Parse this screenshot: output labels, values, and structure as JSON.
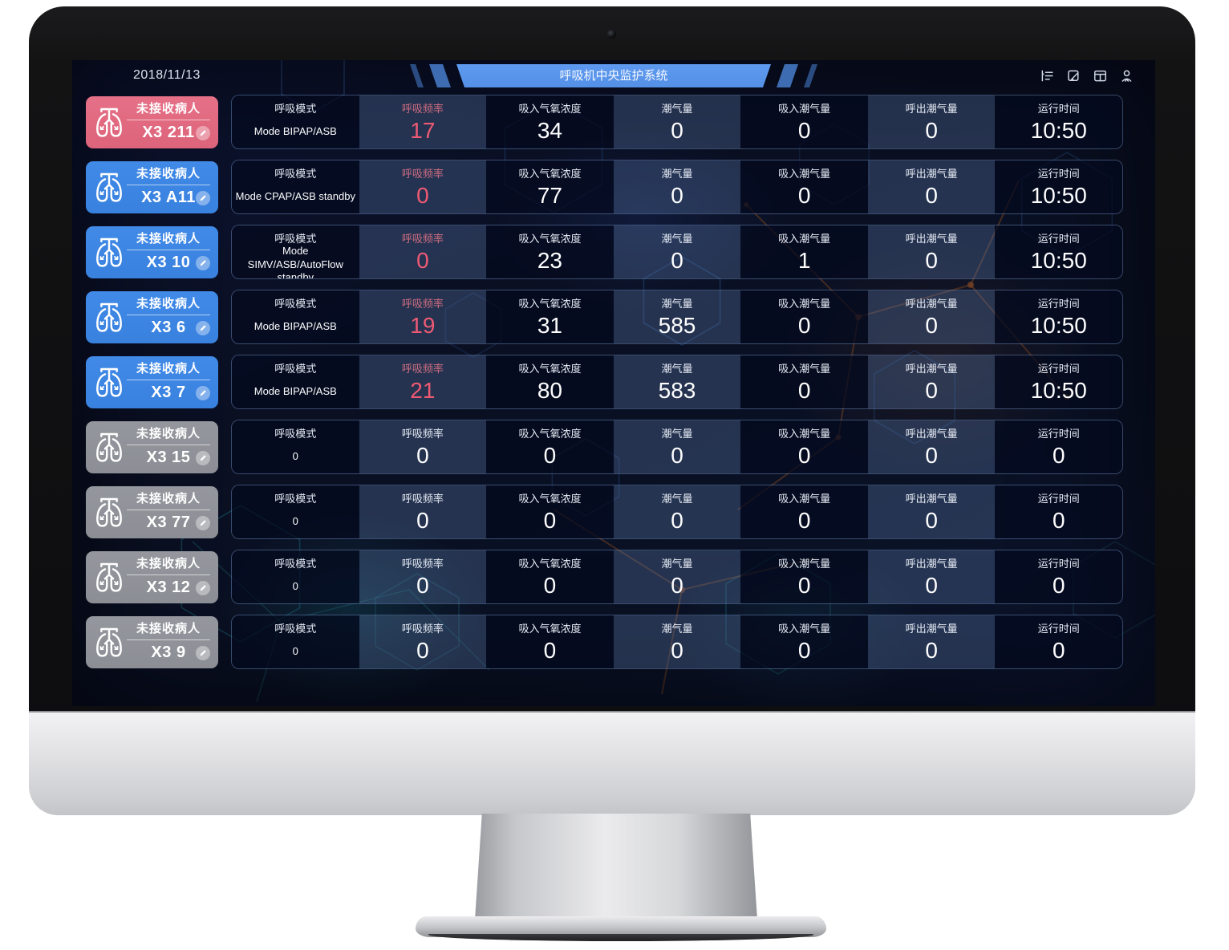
{
  "frame": {
    "date": "2018/11/13",
    "title": "呼吸机中央监护系统"
  },
  "toolbar": {
    "icons": [
      "collapse-menu-icon",
      "edit-note-icon",
      "layout-icon",
      "user-icon"
    ]
  },
  "columns": [
    {
      "key": "mode",
      "label": "呼吸模式"
    },
    {
      "key": "rate",
      "label": "呼吸频率"
    },
    {
      "key": "fio2",
      "label": "吸入气氧浓度"
    },
    {
      "key": "tidal",
      "label": "潮气量"
    },
    {
      "key": "insp_tidal",
      "label": "吸入潮气量"
    },
    {
      "key": "exp_tidal",
      "label": "呼出潮气量"
    },
    {
      "key": "runtime",
      "label": "运行时间"
    }
  ],
  "rows": [
    {
      "id": "X3 211",
      "status": "未接收病人",
      "state": "alarm",
      "values": {
        "mode": "Mode BIPAP/ASB",
        "rate": "17",
        "fio2": "34",
        "tidal": "0",
        "insp_tidal": "0",
        "exp_tidal": "0",
        "runtime": "10:50"
      }
    },
    {
      "id": "X3 A11",
      "status": "未接收病人",
      "state": "online",
      "values": {
        "mode": "Mode CPAP/ASB standby",
        "rate": "0",
        "fio2": "77",
        "tidal": "0",
        "insp_tidal": "0",
        "exp_tidal": "0",
        "runtime": "10:50"
      }
    },
    {
      "id": "X3 10",
      "status": "未接收病人",
      "state": "online",
      "values": {
        "mode": "Mode SIMV/ASB/AutoFlow standby",
        "rate": "0",
        "fio2": "23",
        "tidal": "0",
        "insp_tidal": "1",
        "exp_tidal": "0",
        "runtime": "10:50"
      }
    },
    {
      "id": "X3 6",
      "status": "未接收病人",
      "state": "online",
      "values": {
        "mode": "Mode BIPAP/ASB",
        "rate": "19",
        "fio2": "31",
        "tidal": "585",
        "insp_tidal": "0",
        "exp_tidal": "0",
        "runtime": "10:50"
      }
    },
    {
      "id": "X3 7",
      "status": "未接收病人",
      "state": "online",
      "values": {
        "mode": "Mode BIPAP/ASB",
        "rate": "21",
        "fio2": "80",
        "tidal": "583",
        "insp_tidal": "0",
        "exp_tidal": "0",
        "runtime": "10:50"
      }
    },
    {
      "id": "X3 15",
      "status": "未接收病人",
      "state": "offline",
      "values": {
        "mode": "0",
        "rate": "0",
        "fio2": "0",
        "tidal": "0",
        "insp_tidal": "0",
        "exp_tidal": "0",
        "runtime": "0"
      }
    },
    {
      "id": "X3 77",
      "status": "未接收病人",
      "state": "offline",
      "values": {
        "mode": "0",
        "rate": "0",
        "fio2": "0",
        "tidal": "0",
        "insp_tidal": "0",
        "exp_tidal": "0",
        "runtime": "0"
      }
    },
    {
      "id": "X3 12",
      "status": "未接收病人",
      "state": "offline",
      "values": {
        "mode": "0",
        "rate": "0",
        "fio2": "0",
        "tidal": "0",
        "insp_tidal": "0",
        "exp_tidal": "0",
        "runtime": "0"
      }
    },
    {
      "id": "X3 9",
      "status": "未接收病人",
      "state": "offline",
      "values": {
        "mode": "0",
        "rate": "0",
        "fio2": "0",
        "tidal": "0",
        "insp_tidal": "0",
        "exp_tidal": "0",
        "runtime": "0"
      }
    }
  ],
  "colors": {
    "alarm_card": "#e2697e",
    "online_card": "#3c86e3",
    "offline_card": "#8f9298",
    "rate_accent": "#ee5a74",
    "banner_blue": "#5794ea",
    "screen_bg": "#0a1024"
  }
}
